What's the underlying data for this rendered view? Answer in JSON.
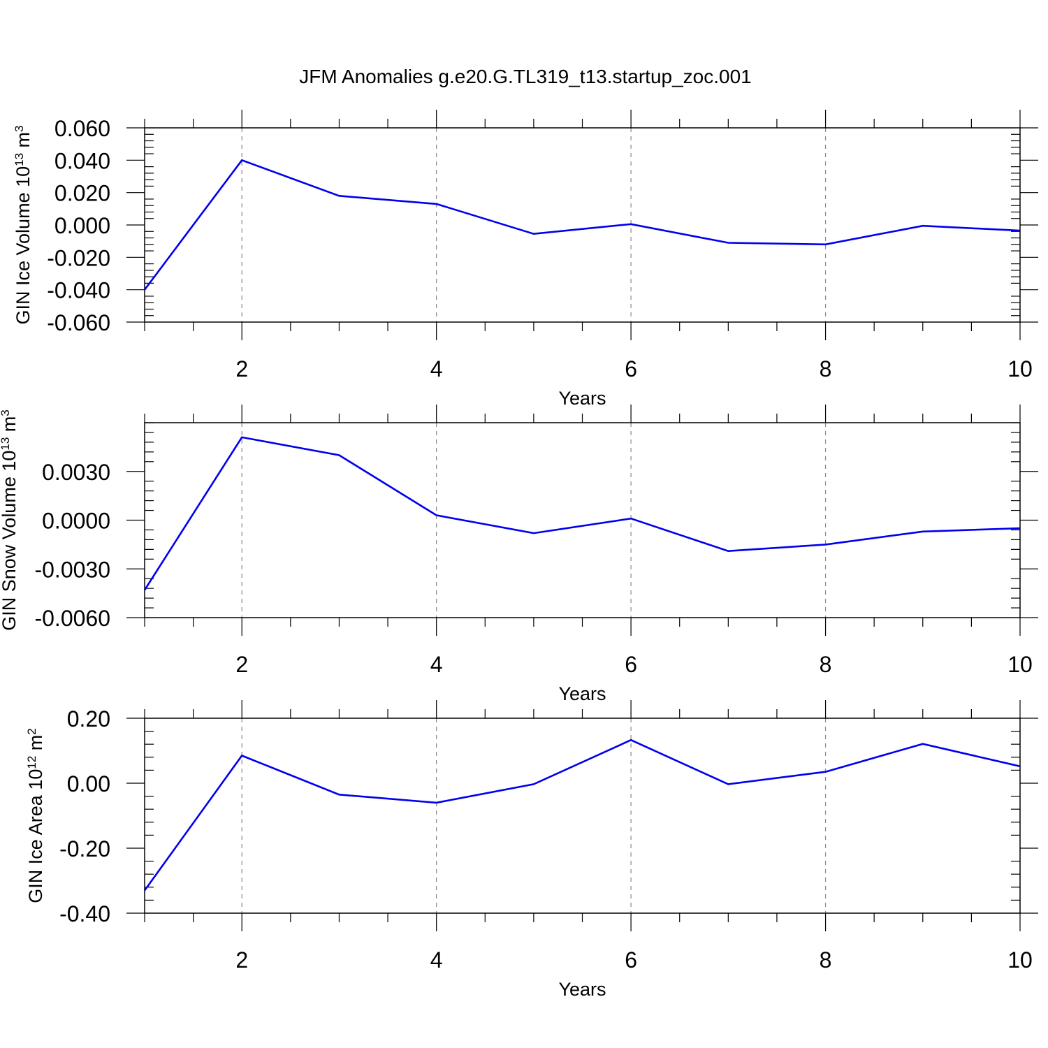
{
  "title": "JFM Anomalies g.e20.G.TL319_t13.startup_zoc.001",
  "line_color": "#0000ee",
  "chart_data": [
    {
      "type": "line",
      "ylabel": {
        "main": "GIN Ice Volume 10",
        "sup": "13",
        "unit": " m",
        "unit_sup": "3"
      },
      "xlabel": "Years",
      "xlim": [
        1,
        10
      ],
      "ylim": [
        -0.06,
        0.06
      ],
      "grid": "vertical dashed at x ticks",
      "xticks": [
        2,
        4,
        6,
        8,
        10
      ],
      "xtick_labels": [
        "2",
        "4",
        "6",
        "8",
        "10"
      ],
      "yticks": [
        -0.06,
        -0.04,
        -0.02,
        0.0,
        0.02,
        0.04,
        0.06
      ],
      "ytick_labels": [
        "-0.060",
        "-0.040",
        "-0.020",
        "0.000",
        "0.020",
        "0.040",
        "0.060"
      ],
      "x": [
        1,
        2,
        3,
        4,
        5,
        6,
        7,
        8,
        9,
        10
      ],
      "y": [
        -0.04,
        0.04,
        0.018,
        0.013,
        -0.0055,
        0.0005,
        -0.011,
        -0.012,
        -0.0005,
        -0.0035
      ]
    },
    {
      "type": "line",
      "ylabel": {
        "main": "GIN Snow Volume 10",
        "sup": "13",
        "unit": " m",
        "unit_sup": "3"
      },
      "xlabel": "Years",
      "xlim": [
        1,
        10
      ],
      "ylim": [
        -0.006,
        0.006
      ],
      "grid": "vertical dashed at x ticks",
      "xticks": [
        2,
        4,
        6,
        8,
        10
      ],
      "xtick_labels": [
        "2",
        "4",
        "6",
        "8",
        "10"
      ],
      "yticks": [
        -0.006,
        -0.003,
        0.0,
        0.003
      ],
      "ytick_labels": [
        "-0.0060",
        "-0.0030",
        "0.0000",
        "0.0030"
      ],
      "x": [
        1,
        2,
        3,
        4,
        5,
        6,
        7,
        8,
        9,
        10
      ],
      "y": [
        -0.0043,
        0.0051,
        0.004,
        0.0003,
        -0.0008,
        0.0001,
        -0.0019,
        -0.0015,
        -0.0007,
        -0.0005
      ]
    },
    {
      "type": "line",
      "ylabel": {
        "main": "GIN Ice Area 10",
        "sup": "12",
        "unit": " m",
        "unit_sup": "2"
      },
      "xlabel": "Years",
      "xlim": [
        1,
        10
      ],
      "ylim": [
        -0.4,
        0.2
      ],
      "grid": "vertical dashed at x ticks",
      "xticks": [
        2,
        4,
        6,
        8,
        10
      ],
      "xtick_labels": [
        "2",
        "4",
        "6",
        "8",
        "10"
      ],
      "yticks": [
        -0.4,
        -0.2,
        0.0,
        0.2
      ],
      "ytick_labels": [
        "-0.40",
        "-0.20",
        "0.00",
        "0.20"
      ],
      "x": [
        1,
        2,
        3,
        4,
        5,
        6,
        7,
        8,
        9,
        10
      ],
      "y": [
        -0.33,
        0.085,
        -0.035,
        -0.06,
        -0.003,
        0.133,
        -0.003,
        0.035,
        0.121,
        0.052
      ]
    }
  ]
}
